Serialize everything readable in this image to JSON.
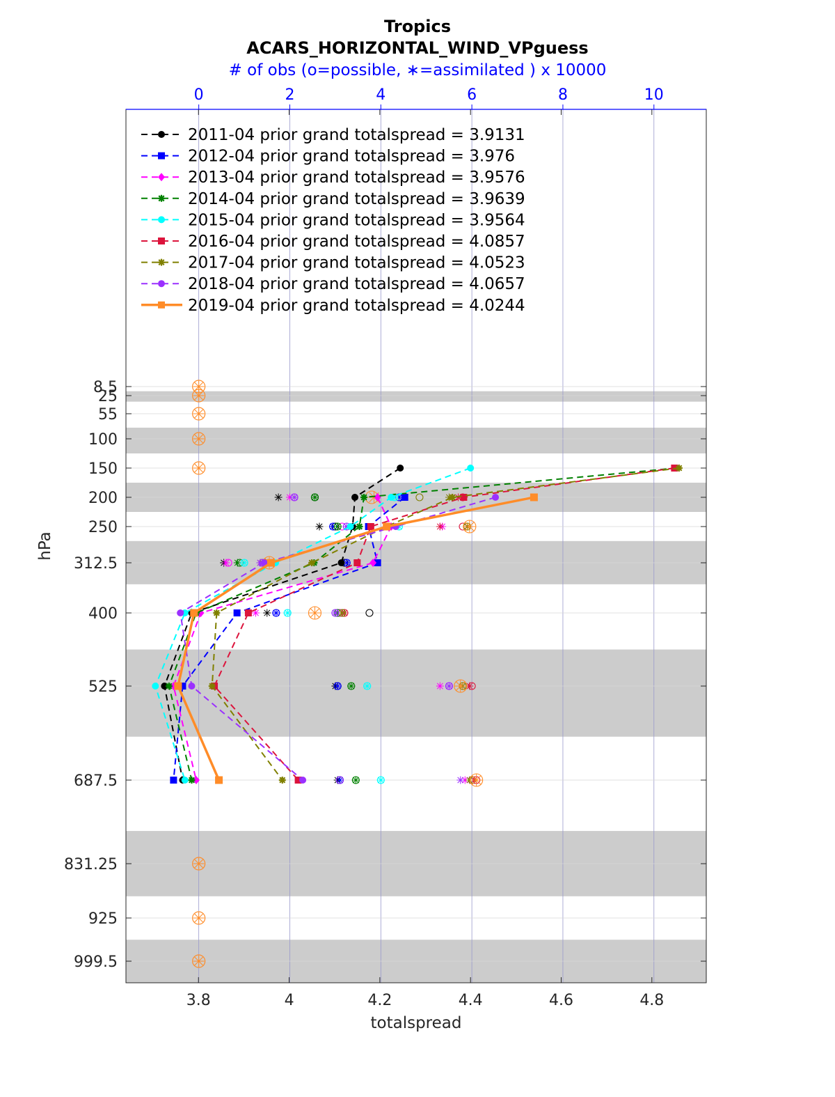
{
  "chart_data": {
    "type": "line",
    "title": "Tropics",
    "subtitle": "ACARS_HORIZONTAL_WIND_VPguess",
    "top_xlabel": "# of obs (o=possible, ∗=assimilated ) x 10000",
    "xlabel": "totalspread",
    "ylabel": "hPa",
    "xlim": [
      3.64,
      4.92
    ],
    "x_ticks": [
      "3.8",
      "4",
      "4.2",
      "4.4",
      "4.6",
      "4.8"
    ],
    "top_xlim": [
      -1.6,
      11.15
    ],
    "top_ticks": [
      "0",
      "2",
      "4",
      "6",
      "8",
      "10"
    ],
    "y_levels": [
      8.5,
      25,
      55,
      100,
      150,
      200,
      250,
      312.5,
      400,
      525,
      687.5,
      831.25,
      925,
      999.5
    ],
    "y_tick_labels": [
      "8.5",
      "25",
      "55",
      "100",
      "150",
      "200",
      "250",
      "312.5",
      "400",
      "525",
      "687.5",
      "831.25",
      "925",
      "999.5"
    ],
    "y_bands": [
      [
        17,
        35
      ],
      [
        80,
        125
      ],
      [
        175,
        225
      ],
      [
        275,
        350
      ],
      [
        462.5,
        612.5
      ],
      [
        775,
        887.5
      ],
      [
        962.5,
        1037.5
      ]
    ],
    "obs_count_levels": [
      8.5,
      25,
      55,
      100,
      150,
      831.25,
      925,
      999.5
    ],
    "series": [
      {
        "name": "2011-04 prior grand totalspread = 3.9131",
        "color": "#000000",
        "marker": "circle",
        "dashed": true,
        "levels": [
          150,
          200,
          250,
          312.5,
          400,
          525,
          687.5
        ],
        "values": [
          4.245,
          4.145,
          4.14,
          4.115,
          3.785,
          3.725,
          3.765
        ],
        "nposs": [
          null,
          2.55,
          3.0,
          3.2,
          3.75,
          3.05,
          3.1
        ],
        "nused": [
          null,
          1.75,
          2.65,
          0.55,
          1.5,
          3.0,
          3.05
        ]
      },
      {
        "name": "2012-04 prior grand totalspread = 3.976",
        "color": "#0000ff",
        "marker": "square",
        "dashed": true,
        "levels": [
          150,
          200,
          250,
          312.5,
          400,
          525,
          687.5
        ],
        "values": [
          null,
          4.255,
          4.175,
          4.195,
          3.885,
          3.765,
          3.745
        ],
        "nposs": [
          null,
          4.4,
          2.95,
          3.25,
          1.7,
          3.05,
          3.1
        ],
        "nused": [
          null,
          4.4,
          2.95,
          3.25,
          1.7,
          3.05,
          3.1
        ]
      },
      {
        "name": "2013-04 prior grand totalspread = 3.9576",
        "color": "#ff00ff",
        "marker": "diamond",
        "dashed": true,
        "levels": [
          150,
          200,
          250,
          312.5,
          400,
          525,
          687.5
        ],
        "values": [
          null,
          4.195,
          4.225,
          4.185,
          3.805,
          3.745,
          3.795
        ],
        "nposs": [
          null,
          2.1,
          3.15,
          0.65,
          3.1,
          5.5,
          6.0
        ],
        "nused": [
          null,
          2.0,
          5.35,
          0.6,
          1.25,
          5.3,
          5.85
        ]
      },
      {
        "name": "2014-04 prior grand totalspread = 3.9639",
        "color": "#008000",
        "marker": "asterisk",
        "dashed": true,
        "levels": [
          150,
          200,
          250,
          312.5,
          400,
          525,
          687.5
        ],
        "values": [
          4.855,
          4.165,
          4.155,
          4.055,
          3.795,
          3.735,
          3.785
        ],
        "nposs": [
          null,
          2.55,
          3.05,
          0.9,
          3.05,
          3.35,
          3.45
        ],
        "nused": [
          null,
          2.55,
          3.05,
          0.85,
          3.05,
          3.35,
          3.45
        ]
      },
      {
        "name": "2015-04 prior grand totalspread = 3.9564",
        "color": "#00ffff",
        "marker": "circle",
        "dashed": true,
        "levels": [
          150,
          200,
          250,
          312.5,
          400,
          525,
          687.5
        ],
        "values": [
          4.4,
          4.225,
          4.135,
          3.97,
          3.77,
          3.705,
          3.77
        ],
        "nposs": [
          null,
          4.3,
          4.4,
          1.0,
          1.95,
          3.7,
          4.0
        ],
        "nused": [
          null,
          4.3,
          4.4,
          1.0,
          1.95,
          3.7,
          4.0
        ]
      },
      {
        "name": "2016-04 prior grand totalspread = 4.0857",
        "color": "#dc143c",
        "marker": "square",
        "dashed": true,
        "levels": [
          150,
          200,
          250,
          312.5,
          400,
          525,
          687.5
        ],
        "values": [
          4.85,
          4.385,
          4.18,
          4.15,
          3.91,
          3.835,
          4.02
        ],
        "nposs": [
          null,
          5.8,
          5.8,
          1.4,
          3.2,
          6.0,
          6.1
        ],
        "nused": [
          null,
          5.7,
          5.3,
          1.35,
          3.2,
          5.95,
          6.05
        ]
      },
      {
        "name": "2017-04 prior grand totalspread = 4.0523",
        "color": "#808000",
        "marker": "asterisk",
        "dashed": true,
        "levels": [
          150,
          200,
          250,
          312.5,
          400,
          525,
          687.5
        ],
        "values": [
          4.86,
          4.36,
          4.215,
          4.05,
          3.84,
          3.83,
          3.985
        ],
        "nposs": [
          null,
          4.85,
          5.9,
          1.45,
          3.15,
          5.8,
          6.0
        ],
        "nused": [
          null,
          5.5,
          5.9,
          1.4,
          3.15,
          5.8,
          5.95
        ]
      },
      {
        "name": "2018-04 prior grand totalspread = 4.0657",
        "color": "#9b30ff",
        "marker": "circle",
        "dashed": true,
        "levels": [
          150,
          200,
          250,
          312.5,
          400,
          525,
          687.5
        ],
        "values": [
          null,
          4.455,
          4.235,
          3.945,
          3.76,
          3.785,
          4.03
        ],
        "nposs": [
          null,
          2.1,
          3.25,
          1.4,
          3.0,
          5.5,
          3.1
        ],
        "nused": [
          null,
          2.1,
          3.25,
          1.35,
          3.0,
          5.5,
          5.75
        ]
      },
      {
        "name": "2019-04 prior grand totalspread = 4.0244",
        "color": "#ff8c28",
        "marker": "square",
        "dashed": false,
        "thick": true,
        "levels": [
          150,
          200,
          250,
          312.5,
          400,
          525,
          687.5
        ],
        "values": [
          null,
          4.54,
          4.215,
          3.96,
          3.79,
          3.755,
          3.845
        ],
        "nposs": [
          0,
          3.8,
          5.95,
          1.55,
          2.55,
          5.75,
          6.1
        ],
        "nused": [
          0,
          3.85,
          5.95,
          1.55,
          2.55,
          5.75,
          6.1
        ]
      }
    ]
  }
}
